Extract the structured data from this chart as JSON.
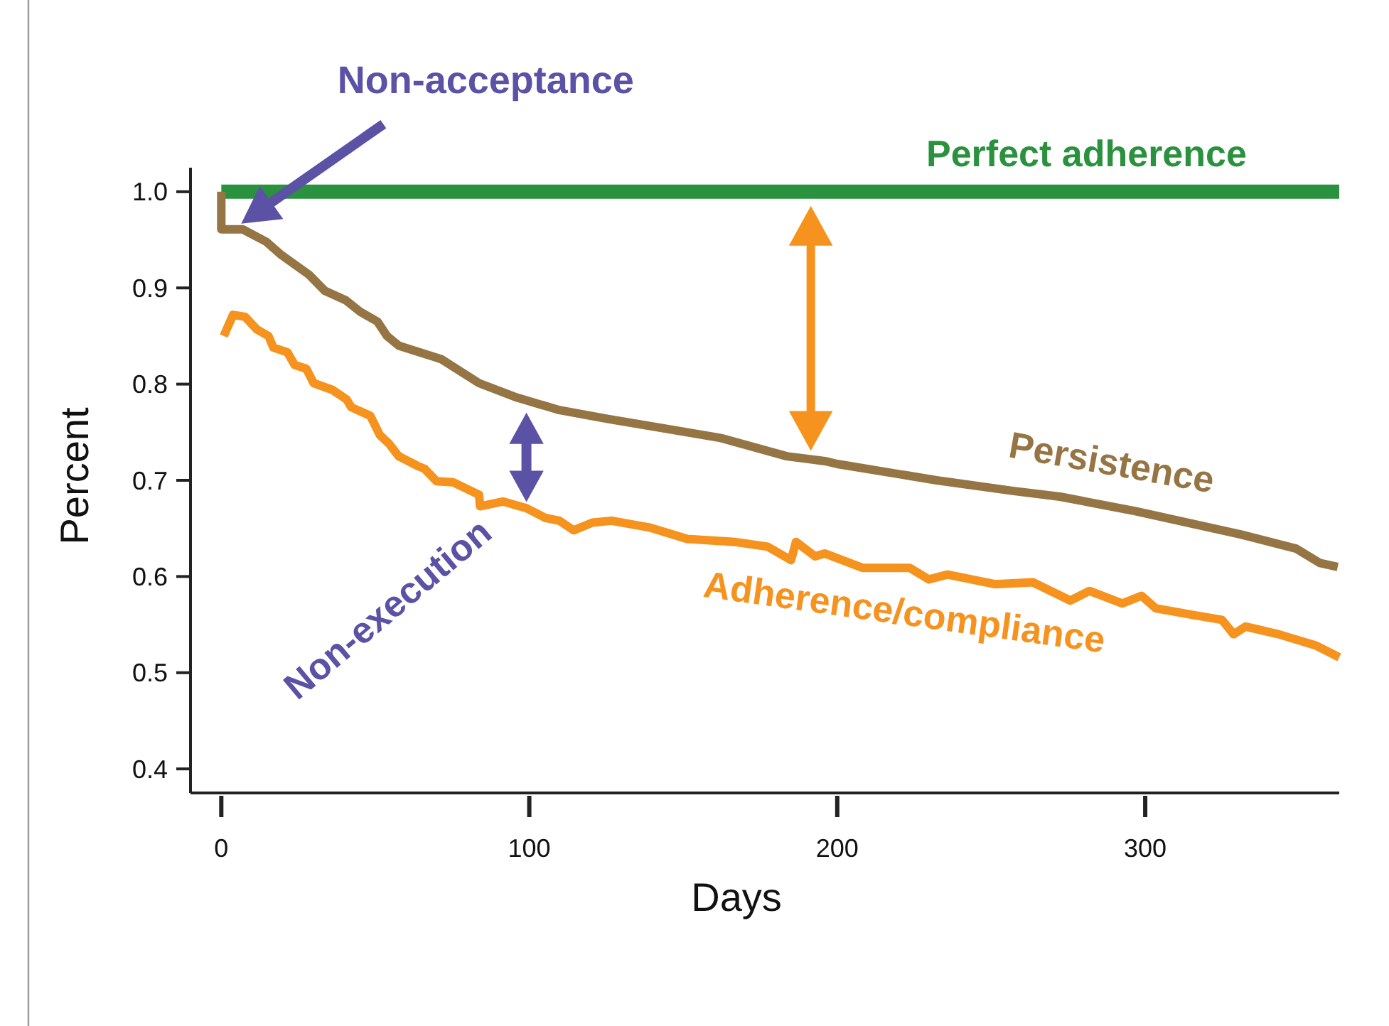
{
  "chart_data": {
    "type": "line",
    "xlabel": "Days",
    "ylabel": "Percent",
    "xlim": [
      -10,
      363
    ],
    "ylim": [
      0.375,
      1.025
    ],
    "xticks": [
      0,
      100,
      200,
      300
    ],
    "yticks": [
      {
        "value": 0.4,
        "label": "0.4"
      },
      {
        "value": 0.5,
        "label": "0.5"
      },
      {
        "value": 0.6,
        "label": "0.6"
      },
      {
        "value": 0.7,
        "label": "0.7"
      },
      {
        "value": 0.8,
        "label": "0.8"
      },
      {
        "value": 0.9,
        "label": "0.9"
      },
      {
        "value": 1,
        "label": "1.0"
      }
    ],
    "grid": false,
    "marker": "none",
    "line_style": "solid",
    "series": [
      {
        "name": "Perfect adherence",
        "color": "#2a923e",
        "x": [
          0,
          363
        ],
        "values": [
          1.0,
          1.0
        ]
      },
      {
        "name": "Persistence",
        "color": "#967545",
        "x": [
          0,
          0,
          6.9,
          14.6,
          19.2,
          28.4,
          33.6,
          40.5,
          45.2,
          50.7,
          53.8,
          57.6,
          71.4,
          83.7,
          96,
          109.8,
          125.2,
          143.7,
          162.1,
          183.6,
          196,
          200,
          232.3,
          257,
          272.3,
          296.8,
          330.7,
          349,
          356.7,
          362.5
        ],
        "values": [
          1.0,
          0.961,
          0.961,
          0.948,
          0.935,
          0.914,
          0.897,
          0.887,
          0.875,
          0.865,
          0.85,
          0.84,
          0.826,
          0.801,
          0.786,
          0.773,
          0.764,
          0.754,
          0.744,
          0.725,
          0.72,
          0.717,
          0.7,
          0.689,
          0.683,
          0.668,
          0.644,
          0.629,
          0.614,
          0.61
        ]
      },
      {
        "name": "Adherence/compliance",
        "color": "#f6921e",
        "x": [
          0.8,
          3.8,
          7.7,
          11.5,
          15.3,
          16.9,
          21.5,
          23.8,
          27.6,
          30,
          36.1,
          40.7,
          42.2,
          48.4,
          51.5,
          54.5,
          57.6,
          63.7,
          66,
          69.9,
          75.2,
          83.7,
          84,
          91.4,
          99.1,
          105.2,
          109.8,
          114.4,
          120.5,
          126.7,
          139,
          151.3,
          166.6,
          177.4,
          185,
          186.6,
          192.8,
          195.9,
          208.2,
          223.5,
          229.7,
          235.8,
          251.2,
          263.5,
          275.7,
          281.9,
          292.6,
          298.8,
          303.4,
          315.7,
          324.9,
          328.7,
          332.6,
          343.3,
          355.6,
          363
        ],
        "values": [
          0.85,
          0.872,
          0.87,
          0.857,
          0.85,
          0.838,
          0.833,
          0.82,
          0.816,
          0.801,
          0.794,
          0.784,
          0.776,
          0.767,
          0.747,
          0.738,
          0.725,
          0.715,
          0.712,
          0.699,
          0.698,
          0.685,
          0.673,
          0.678,
          0.671,
          0.661,
          0.658,
          0.648,
          0.656,
          0.658,
          0.651,
          0.639,
          0.636,
          0.631,
          0.617,
          0.636,
          0.621,
          0.624,
          0.609,
          0.609,
          0.597,
          0.602,
          0.592,
          0.594,
          0.575,
          0.585,
          0.572,
          0.58,
          0.567,
          0.56,
          0.555,
          0.54,
          0.548,
          0.54,
          0.528,
          0.516
        ]
      }
    ],
    "annotations": [
      "Non-acceptance",
      {
        "text": "Non-execution",
        "x": 100,
        "y": 0.67
      }
    ]
  }
}
